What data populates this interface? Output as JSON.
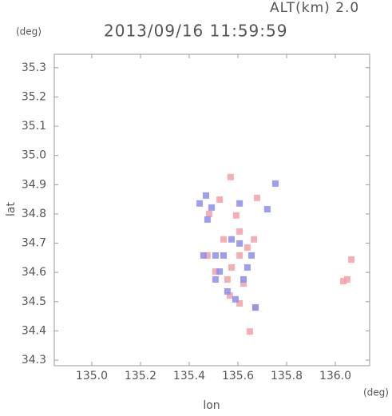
{
  "chart_data": {
    "type": "scatter",
    "title": "2013/09/16 11:59:59",
    "annotation": "ALT(km) 2.0",
    "y_unit": "(deg)",
    "x_unit": "(deg)",
    "xlabel": "lon",
    "ylabel": "lat",
    "xlim": [
      134.846,
      136.141
    ],
    "ylim": [
      34.281,
      35.346
    ],
    "xticks": [
      {
        "value": 135,
        "label": "135.0"
      },
      135.2,
      135.4,
      135.6,
      135.8,
      {
        "value": 136,
        "label": "136.0"
      }
    ],
    "yticks": [
      34.3,
      34.4,
      34.5,
      34.6,
      34.7,
      34.8,
      34.9,
      {
        "value": 35,
        "label": "35.0"
      },
      35.1,
      35.2,
      35.3
    ],
    "series": [
      {
        "color": "#f4a0a8",
        "x": [
          135.57,
          135.593,
          135.607,
          135.679,
          135.649,
          135.672,
          135.567,
          135.607,
          135.541,
          135.607,
          135.508,
          135.574,
          135.639,
          135.475,
          135.557,
          135.623,
          136.049,
          136.066,
          136.033,
          135.525,
          135.482,
          135.666
        ],
        "y": [
          34.926,
          34.795,
          34.74,
          34.855,
          34.398,
          34.48,
          34.521,
          34.494,
          34.713,
          34.658,
          34.603,
          34.617,
          34.685,
          34.658,
          34.576,
          34.562,
          34.576,
          34.644,
          34.57,
          34.849,
          34.8,
          34.713
        ]
      },
      {
        "color": "#8c8cf0",
        "x": [
          135.754,
          135.469,
          135.492,
          135.607,
          135.721,
          135.574,
          135.508,
          135.607,
          135.639,
          135.525,
          135.459,
          135.508,
          135.623,
          135.59,
          135.672,
          135.557,
          135.541,
          135.656,
          135.443,
          135.475
        ],
        "y": [
          34.904,
          34.863,
          34.822,
          34.836,
          34.816,
          34.713,
          34.658,
          34.699,
          34.617,
          34.603,
          34.658,
          34.576,
          34.576,
          34.508,
          34.48,
          34.535,
          34.658,
          34.658,
          34.836,
          34.781
        ]
      }
    ]
  }
}
